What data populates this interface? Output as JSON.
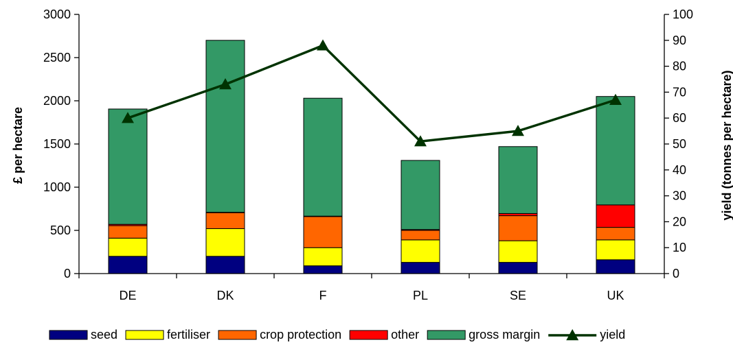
{
  "chart_data": {
    "type": "bar",
    "stacked": true,
    "categories": [
      "DE",
      "DK",
      "F",
      "PL",
      "SE",
      "UK"
    ],
    "series": [
      {
        "name": "seed",
        "color": "#000080",
        "values": [
          200,
          200,
          90,
          130,
          130,
          160
        ]
      },
      {
        "name": "fertiliser",
        "color": "#FFFF00",
        "values": [
          210,
          320,
          210,
          260,
          250,
          230
        ]
      },
      {
        "name": "crop protection",
        "color": "#FF6600",
        "values": [
          145,
          185,
          360,
          110,
          290,
          145
        ]
      },
      {
        "name": "other",
        "color": "#FF0000",
        "values": [
          15,
          5,
          5,
          10,
          25,
          260
        ]
      },
      {
        "name": "gross margin",
        "color": "#339966",
        "values": [
          1335,
          1990,
          1365,
          800,
          775,
          1255
        ]
      }
    ],
    "line_series": {
      "name": "yield",
      "color": "#003300",
      "axis": "right",
      "values": [
        60,
        73,
        88,
        51,
        55,
        67
      ]
    },
    "ylabel": "£ per hectare",
    "ylabel_right": "yield (tonnes per hectare)",
    "ylim": [
      0,
      3000
    ],
    "ylim_right": [
      0,
      100
    ],
    "yticks": [
      "0",
      "500",
      "1000",
      "1500",
      "2000",
      "2500",
      "3000"
    ],
    "yticks_right": [
      "0",
      "10",
      "20",
      "30",
      "40",
      "50",
      "60",
      "70",
      "80",
      "90",
      "100"
    ],
    "legend_position": "bottom"
  }
}
